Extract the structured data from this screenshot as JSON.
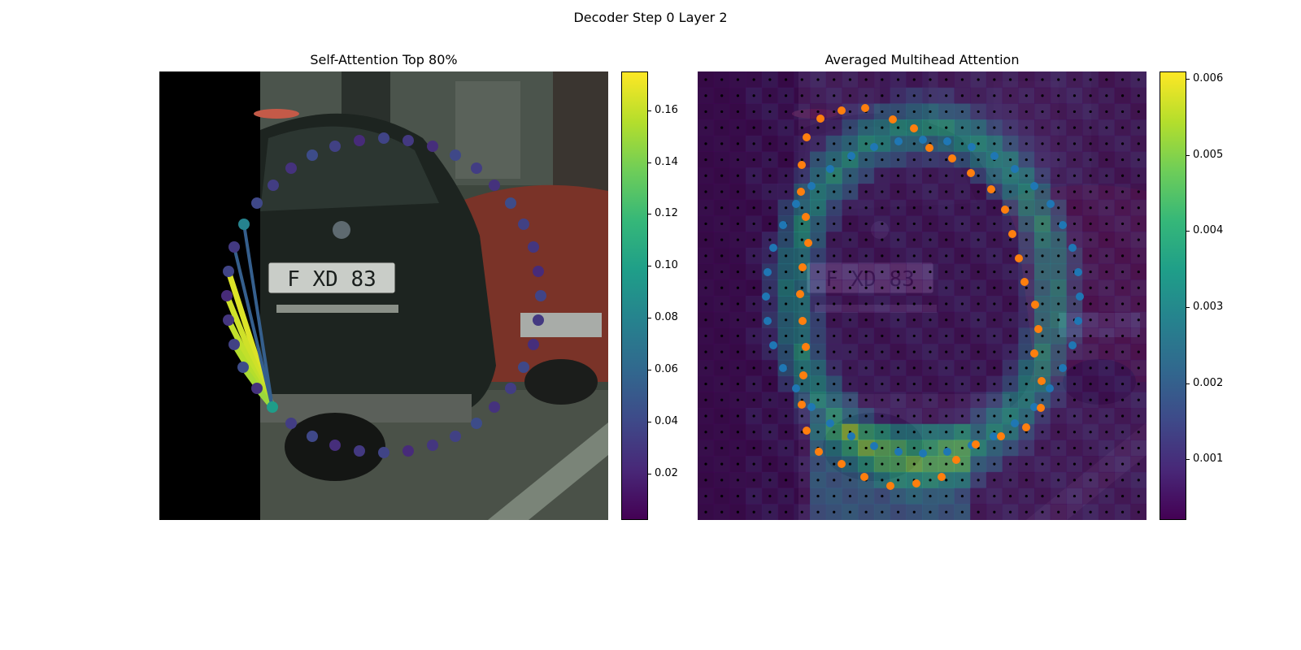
{
  "figure": {
    "suptitle": "Decoder Step 0 Layer 2"
  },
  "chart_data": [
    {
      "type": "scatter",
      "title": "Self-Attention Top 80%",
      "background": "street photo: rear of a dark BMW with license plate, red car to the right",
      "plate_text": "F XD 83",
      "points_note": "query points arranged in a ring around the car",
      "query_point": [
        335,
        501
      ],
      "attention_targets": [
        [
          281,
          334
        ],
        [
          279,
          364
        ],
        [
          281,
          394
        ],
        [
          288,
          424
        ],
        [
          299,
          452
        ],
        [
          316,
          478
        ],
        [
          288,
          304
        ],
        [
          300,
          276
        ]
      ],
      "colorbar": {
        "cmap": "viridis",
        "ticks": [
          "0.02",
          "0.04",
          "0.06",
          "0.08",
          "0.10",
          "0.12",
          "0.14",
          "0.16"
        ],
        "range": [
          0.002,
          0.175
        ]
      }
    },
    {
      "type": "heatmap",
      "title": "Averaged Multihead Attention",
      "grid": "28x28 patch attention map over faded image",
      "series": [
        {
          "name": "",
          "color": "#1f77b4"
        },
        {
          "name": "",
          "color": "#ff7f0e"
        }
      ],
      "colorbar": {
        "cmap": "viridis",
        "ticks": [
          "0.001",
          "0.002",
          "0.003",
          "0.004",
          "0.005",
          "0.006"
        ],
        "range": [
          0.0002,
          0.0061
        ]
      }
    }
  ]
}
